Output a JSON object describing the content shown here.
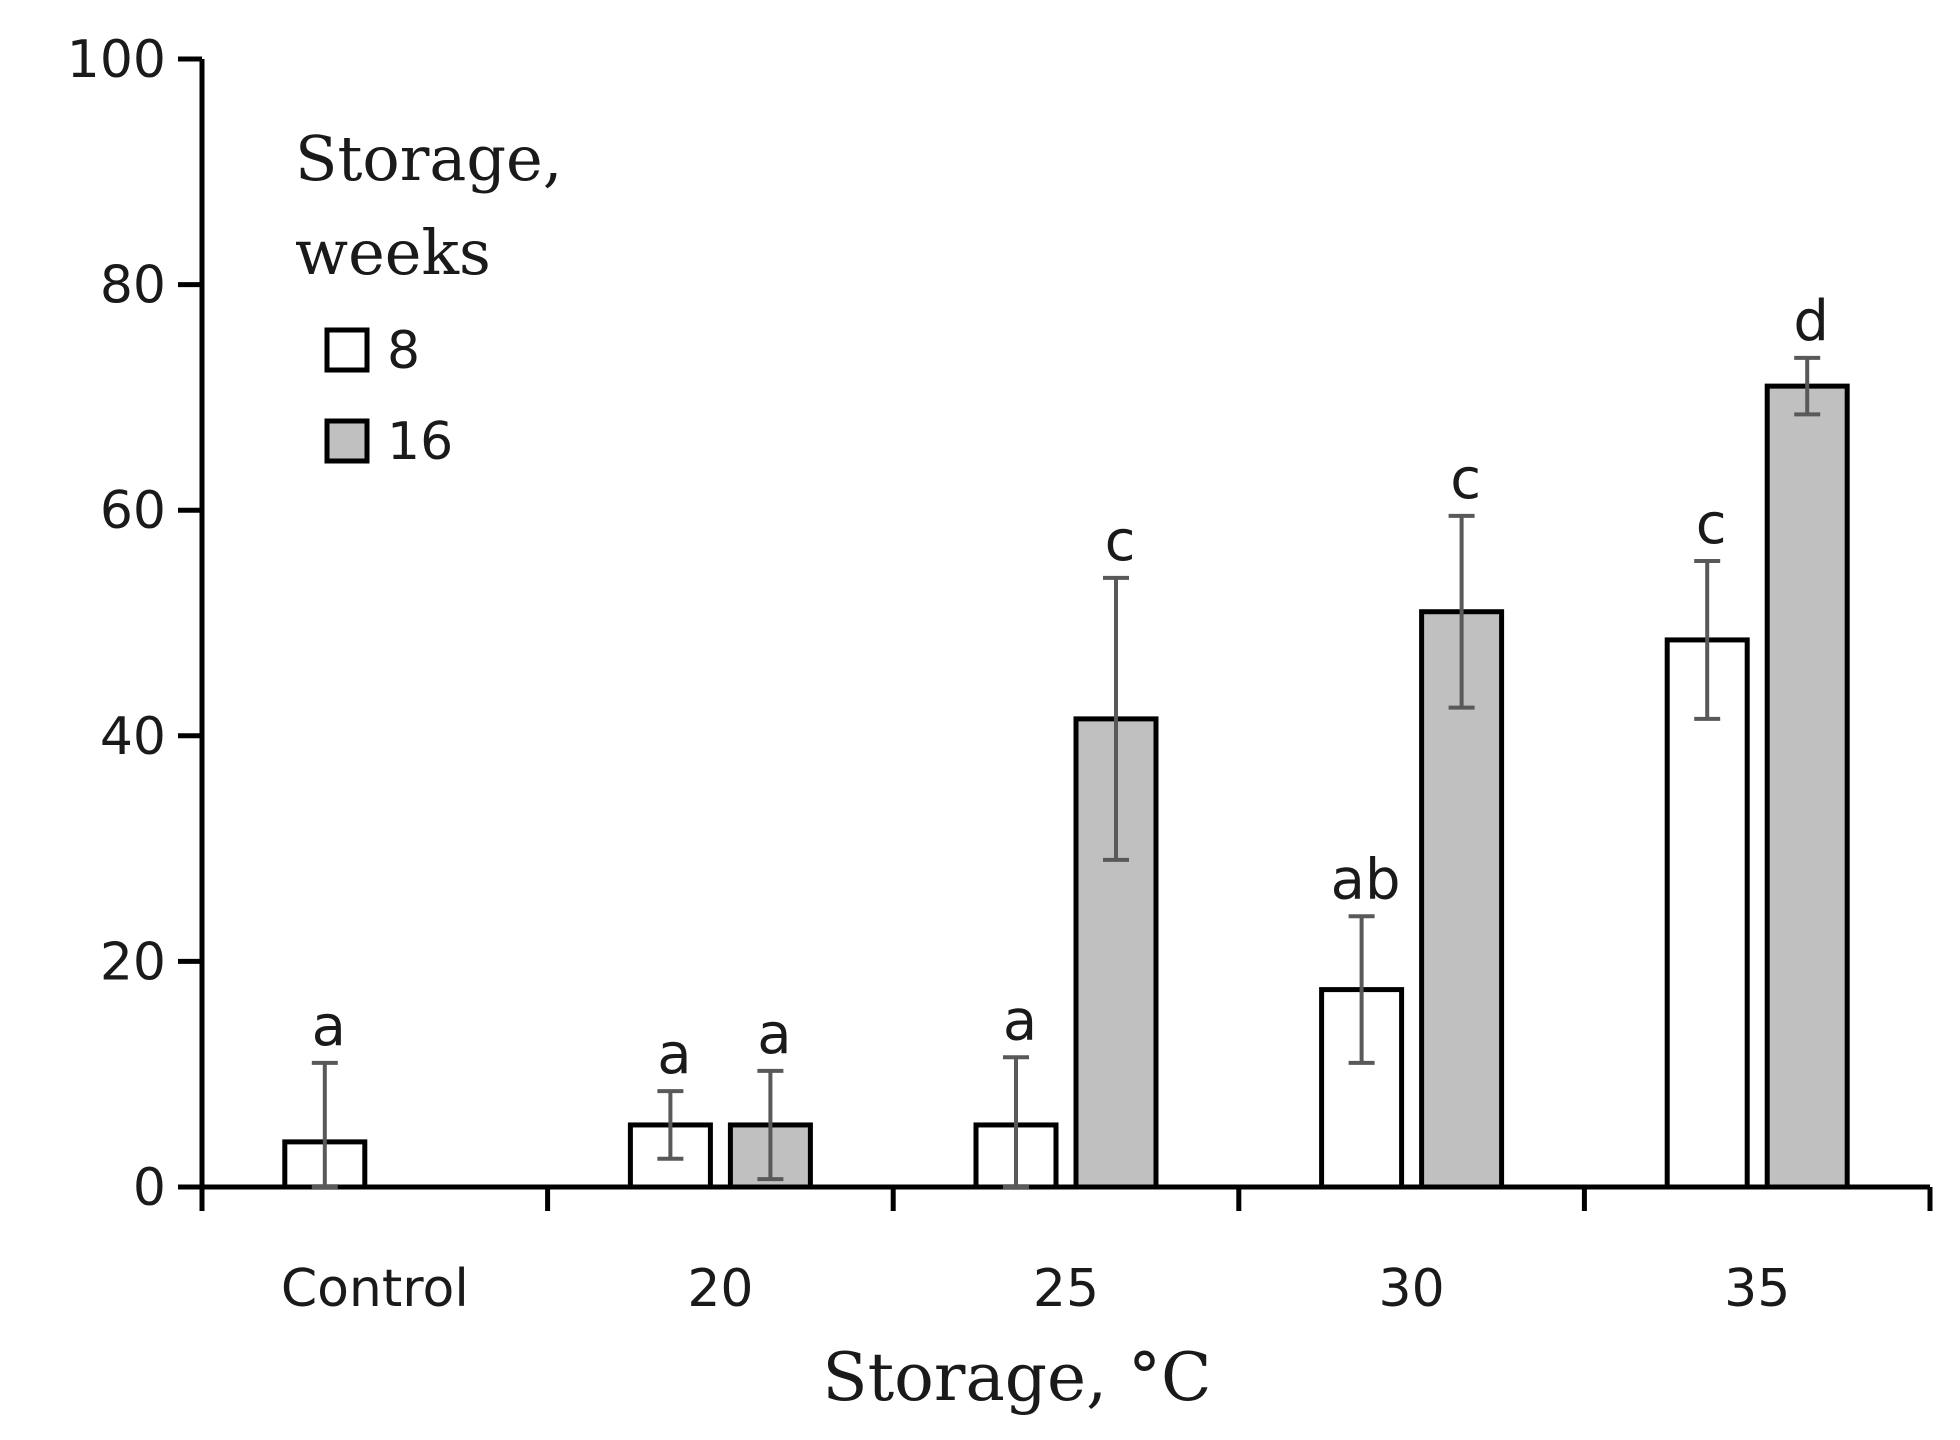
{
  "chart_data": {
    "type": "bar",
    "categories": [
      "Control",
      "20",
      "25",
      "30",
      "35"
    ],
    "xlabel": "Storage, °C",
    "ylabel": "",
    "ylim": [
      0,
      100
    ],
    "yticks": [
      0,
      20,
      40,
      60,
      80,
      100
    ],
    "grid": false,
    "legend": {
      "title_lines": [
        "Storage,",
        "weeks"
      ],
      "position": "top-left",
      "entries": [
        "8",
        "16"
      ]
    },
    "series": [
      {
        "name": "8",
        "color": "#ffffff",
        "values": [
          4,
          5.5,
          5.5,
          17.5,
          48.5
        ],
        "errors": [
          7,
          3,
          6,
          6.5,
          7
        ],
        "letters": [
          "a",
          "a",
          "a",
          "ab",
          "c"
        ]
      },
      {
        "name": "16",
        "color": "#c0c0c0",
        "values": [
          null,
          5.5,
          41.5,
          51,
          71
        ],
        "errors": [
          null,
          4.8,
          12.5,
          8.5,
          2.5
        ],
        "letters": [
          null,
          "a",
          "c",
          "c",
          "d"
        ]
      }
    ],
    "edge_color": "#000000",
    "error_bar_color": "#595959"
  }
}
